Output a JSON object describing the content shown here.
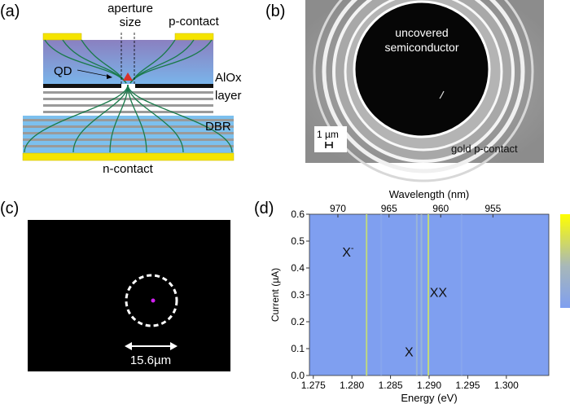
{
  "panels": {
    "a": {
      "label": "(a)",
      "aperture_line1": "aperture",
      "aperture_line2": "size",
      "p_contact": "p-contact",
      "qd": "QD",
      "alox": "AlOx",
      "alox_line2": "layer",
      "dbr": "DBR",
      "n_contact": "n-contact",
      "colors": {
        "contact": "#f5e400",
        "top": "#8a86c4",
        "dbr_light": "#7cc0ee",
        "dbr_dark": "#9a9a9a",
        "field_lines": "#1a7a4a",
        "qd": "#d8322a"
      }
    },
    "b": {
      "label": "(b)",
      "center_text_line1": "uncovered",
      "center_text_line2": "semiconductor",
      "scale_bar": "1 µm",
      "corner_text": "gold p-contact"
    },
    "c": {
      "label": "(c)",
      "scale": "15.6µm",
      "spot_color": "#d020f0"
    },
    "d": {
      "label": "(d)"
    }
  },
  "chart_data": {
    "type": "heatmap",
    "xlabel": "Energy (eV)",
    "ylabel": "Current (µA)",
    "x2label": "Wavelength (nm)",
    "xlim": [
      1.2745,
      1.3055
    ],
    "ylim": [
      0.0,
      0.6
    ],
    "xticks": [
      "1.275",
      "1.280",
      "1.285",
      "1.290",
      "1.295",
      "1.300"
    ],
    "yticks": [
      "0.0",
      "0.1",
      "0.2",
      "0.3",
      "0.4",
      "0.5",
      "0.6"
    ],
    "x2ticks": [
      "970",
      "965",
      "960",
      "955"
    ],
    "background_color": "#7f9ff0",
    "colorbar": [
      "#ffff00",
      "#7f9ff0"
    ],
    "lines": [
      {
        "energy": 1.2819,
        "intensity": 0.7
      },
      {
        "energy": 1.2884,
        "intensity": 0.25
      },
      {
        "energy": 1.289,
        "intensity": 0.35
      },
      {
        "energy": 1.2899,
        "intensity": 0.85
      },
      {
        "energy": 1.2838,
        "intensity": 0.08
      },
      {
        "energy": 1.2942,
        "intensity": 0.08
      }
    ],
    "annotations": [
      {
        "text": "X",
        "sup": "-",
        "energy": 1.2795,
        "current": 0.46
      },
      {
        "text": "XX",
        "energy": 1.2912,
        "current": 0.31
      },
      {
        "text": "X",
        "energy": 1.2874,
        "current": 0.09
      }
    ]
  }
}
